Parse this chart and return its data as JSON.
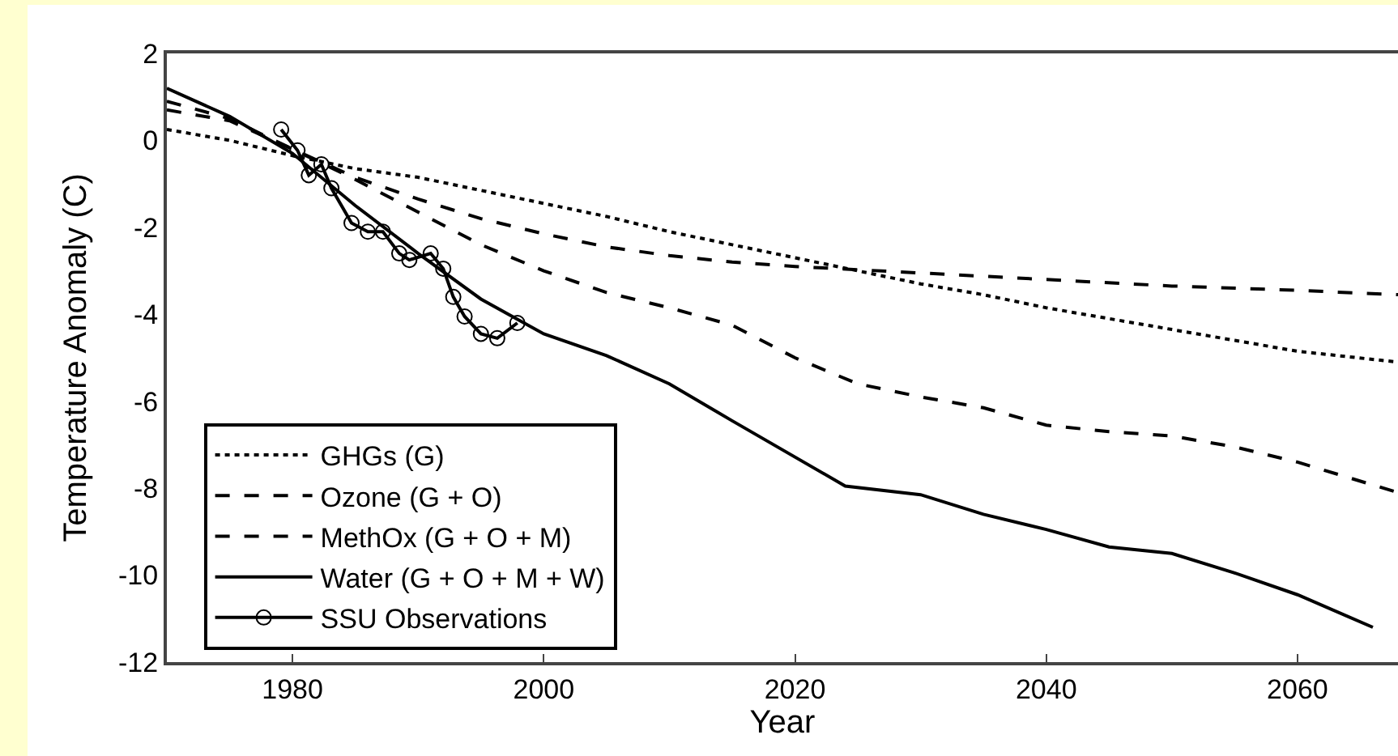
{
  "chart_data": {
    "type": "line",
    "xlabel": "Year",
    "ylabel": "Temperature Anomaly (C)",
    "xlim": [
      1970,
      2068
    ],
    "xticks": [
      1980,
      2000,
      2020,
      2040,
      2060
    ],
    "ylim": [
      -12,
      2
    ],
    "yticks": [
      -12,
      -10,
      -8,
      -6,
      -4,
      -2,
      0,
      2
    ],
    "grid": false,
    "legend": "bottom left",
    "series": [
      {
        "name": "GHGs (G)",
        "color": "#000000",
        "line_style": "dotted",
        "marker": "none",
        "x": [
          1970,
          1975,
          1980,
          1985,
          1990,
          1995,
          2000,
          2005,
          2010,
          2015,
          2020,
          2025,
          2030,
          2035,
          2040,
          2045,
          2050,
          2055,
          2060,
          2068
        ],
        "values": [
          0.25,
          0.0,
          -0.35,
          -0.65,
          -0.85,
          -1.15,
          -1.45,
          -1.75,
          -2.1,
          -2.4,
          -2.7,
          -3.0,
          -3.3,
          -3.55,
          -3.85,
          -4.1,
          -4.35,
          -4.6,
          -4.85,
          -5.1
        ]
      },
      {
        "name": "Ozone (G + O)",
        "color": "#000000",
        "line_style": "dashed",
        "marker": "none",
        "x": [
          1970,
          1975,
          1980,
          1985,
          1990,
          1995,
          2000,
          2005,
          2010,
          2015,
          2020,
          2030,
          2040,
          2050,
          2060,
          2068
        ],
        "values": [
          0.7,
          0.45,
          -0.2,
          -0.85,
          -1.35,
          -1.8,
          -2.15,
          -2.45,
          -2.65,
          -2.8,
          -2.9,
          -3.05,
          -3.2,
          -3.35,
          -3.45,
          -3.55
        ]
      },
      {
        "name": "MethOx (G + O + M)",
        "color": "#000000",
        "line_style": "dashed",
        "marker": "none",
        "x": [
          1970,
          1975,
          1980,
          1985,
          1990,
          1995,
          2000,
          2005,
          2010,
          2015,
          2020,
          2025,
          2030,
          2035,
          2040,
          2045,
          2050,
          2055,
          2060,
          2068
        ],
        "values": [
          0.9,
          0.5,
          -0.2,
          -0.9,
          -1.65,
          -2.4,
          -3.0,
          -3.5,
          -3.85,
          -4.25,
          -5.0,
          -5.6,
          -5.9,
          -6.15,
          -6.55,
          -6.7,
          -6.8,
          -7.05,
          -7.4,
          -8.1
        ]
      },
      {
        "name": "Water (G + O + M + W)",
        "color": "#000000",
        "line_style": "solid",
        "marker": "none",
        "x": [
          1970,
          1975,
          1980,
          1985,
          1990,
          1995,
          2000,
          2005,
          2010,
          2015,
          2024,
          2030,
          2035,
          2040,
          2045,
          2050,
          2055,
          2060,
          2066
        ],
        "values": [
          1.2,
          0.55,
          -0.3,
          -1.5,
          -2.6,
          -3.65,
          -4.45,
          -4.95,
          -5.6,
          -6.45,
          -7.95,
          -8.15,
          -8.6,
          -8.95,
          -9.35,
          -9.5,
          -9.95,
          -10.45,
          -11.2
        ]
      },
      {
        "name": "SSU Observations",
        "color": "#000000",
        "line_style": "solid",
        "marker": "circle",
        "x": [
          1979.1,
          1980.4,
          1981.3,
          1982.3,
          1983.1,
          1984.7,
          1986,
          1987.2,
          1988.5,
          1989.3,
          1991,
          1992,
          1992.8,
          1993.7,
          1995,
          1996.3,
          1997.9
        ],
        "values": [
          0.25,
          -0.23,
          -0.8,
          -0.55,
          -1.1,
          -1.9,
          -2.1,
          -2.1,
          -2.6,
          -2.75,
          -2.6,
          -2.95,
          -3.6,
          -4.05,
          -4.45,
          -4.55,
          -4.2
        ]
      }
    ]
  }
}
